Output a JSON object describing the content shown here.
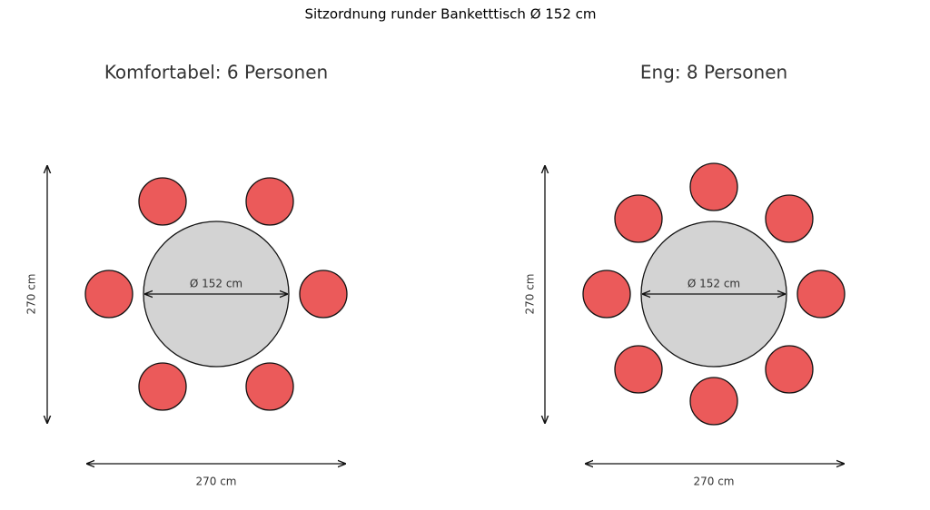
{
  "title": "Sitzordnung runder Banketttisch Ø 152 cm",
  "panels": [
    {
      "title": "Komfortabel: 6 Personen",
      "table_label": "Ø 152 cm",
      "height_label": "270 cm",
      "width_label": "270 cm"
    },
    {
      "title": "Eng: 8 Personen",
      "table_label": "Ø 152 cm",
      "height_label": "270 cm",
      "width_label": "270 cm"
    }
  ]
}
